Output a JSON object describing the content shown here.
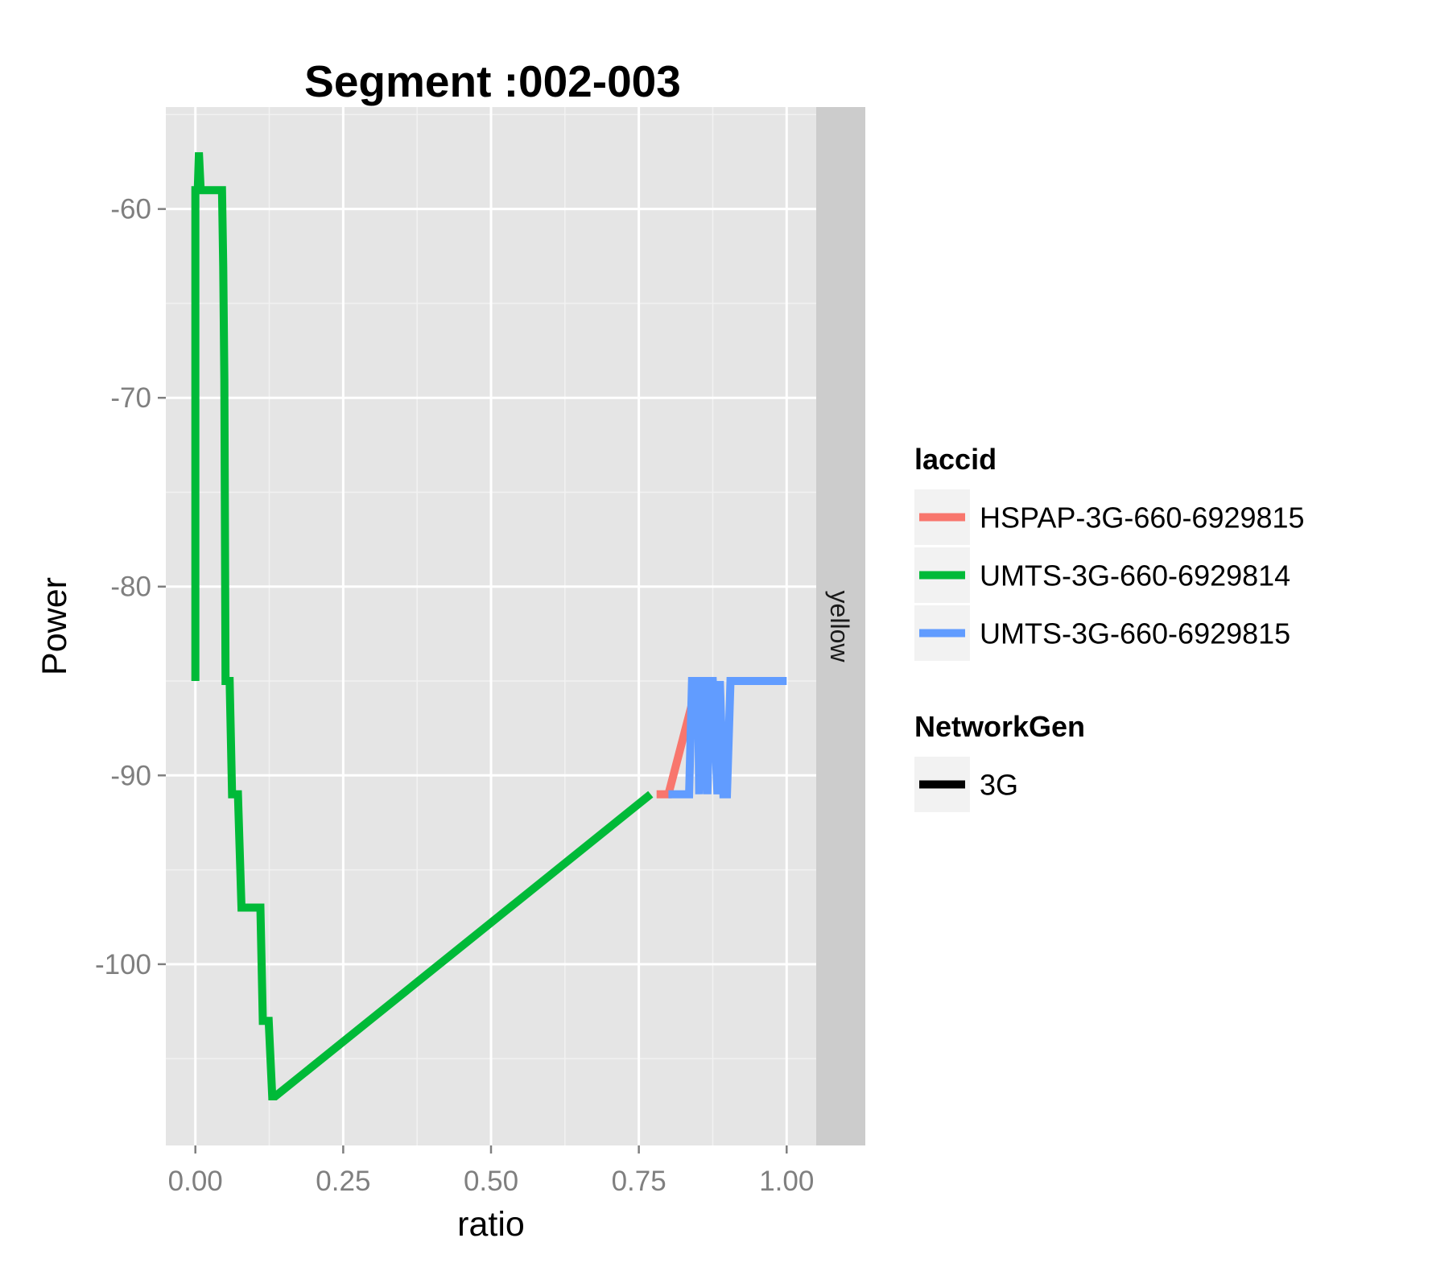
{
  "chart_data": {
    "type": "line",
    "title": "Segment :002-003",
    "xlabel": "ratio",
    "ylabel": "Power",
    "xlim": [
      -0.05,
      1.05
    ],
    "ylim": [
      -109.6,
      -54.6
    ],
    "x_ticks": [
      {
        "value": 0.0,
        "label": "0.00"
      },
      {
        "value": 0.25,
        "label": "0.25"
      },
      {
        "value": 0.5,
        "label": "0.50"
      },
      {
        "value": 0.75,
        "label": "0.75"
      },
      {
        "value": 1.0,
        "label": "1.00"
      }
    ],
    "y_ticks": [
      {
        "value": -60,
        "label": "-60"
      },
      {
        "value": -70,
        "label": "-70"
      },
      {
        "value": -80,
        "label": "-80"
      },
      {
        "value": -90,
        "label": "-90"
      },
      {
        "value": -100,
        "label": "-100"
      }
    ],
    "facet_label": "yellow",
    "grid": true,
    "legend_position": "right",
    "colors": {
      "panel_background": "#e5e5e5",
      "grid_major": "#ffffff",
      "grid_minor": "#f2f2f2",
      "strip_background": "#cccccc",
      "legend_key_background": "#f2f2f2"
    },
    "legend": {
      "color_title": "laccid",
      "linetype_title": "NetworkGen",
      "linetype_entries": [
        {
          "label": "3G",
          "color": "#000000"
        }
      ]
    },
    "series": [
      {
        "name": "HSPAP-3G-660-6929815",
        "color": "#f8766d",
        "points": [
          [
            0.78,
            -91
          ],
          [
            0.8,
            -91
          ],
          [
            0.85,
            -85
          ],
          [
            0.88,
            -85
          ]
        ]
      },
      {
        "name": "UMTS-3G-660-6929814",
        "color": "#00ba38",
        "points": [
          [
            0.0,
            -85
          ],
          [
            0.0,
            -59
          ],
          [
            0.004,
            -59
          ],
          [
            0.006,
            -57
          ],
          [
            0.009,
            -59
          ],
          [
            0.045,
            -59
          ],
          [
            0.047,
            -63
          ],
          [
            0.049,
            -69
          ],
          [
            0.051,
            -85
          ],
          [
            0.058,
            -85
          ],
          [
            0.062,
            -91
          ],
          [
            0.072,
            -91
          ],
          [
            0.078,
            -97
          ],
          [
            0.11,
            -97
          ],
          [
            0.114,
            -103
          ],
          [
            0.124,
            -103
          ],
          [
            0.13,
            -107
          ],
          [
            0.135,
            -107
          ],
          [
            0.77,
            -91
          ]
        ]
      },
      {
        "name": "UMTS-3G-660-6929815",
        "color": "#619cff",
        "points": [
          [
            0.8,
            -91
          ],
          [
            0.835,
            -91
          ],
          [
            0.84,
            -85
          ],
          [
            0.85,
            -85
          ],
          [
            0.852,
            -91
          ],
          [
            0.855,
            -85
          ],
          [
            0.862,
            -85
          ],
          [
            0.866,
            -91
          ],
          [
            0.87,
            -85
          ],
          [
            0.875,
            -85
          ],
          [
            0.883,
            -91
          ],
          [
            0.887,
            -85
          ],
          [
            0.893,
            -91
          ],
          [
            0.899,
            -91
          ],
          [
            0.905,
            -85
          ],
          [
            1.0,
            -85
          ]
        ]
      }
    ]
  }
}
